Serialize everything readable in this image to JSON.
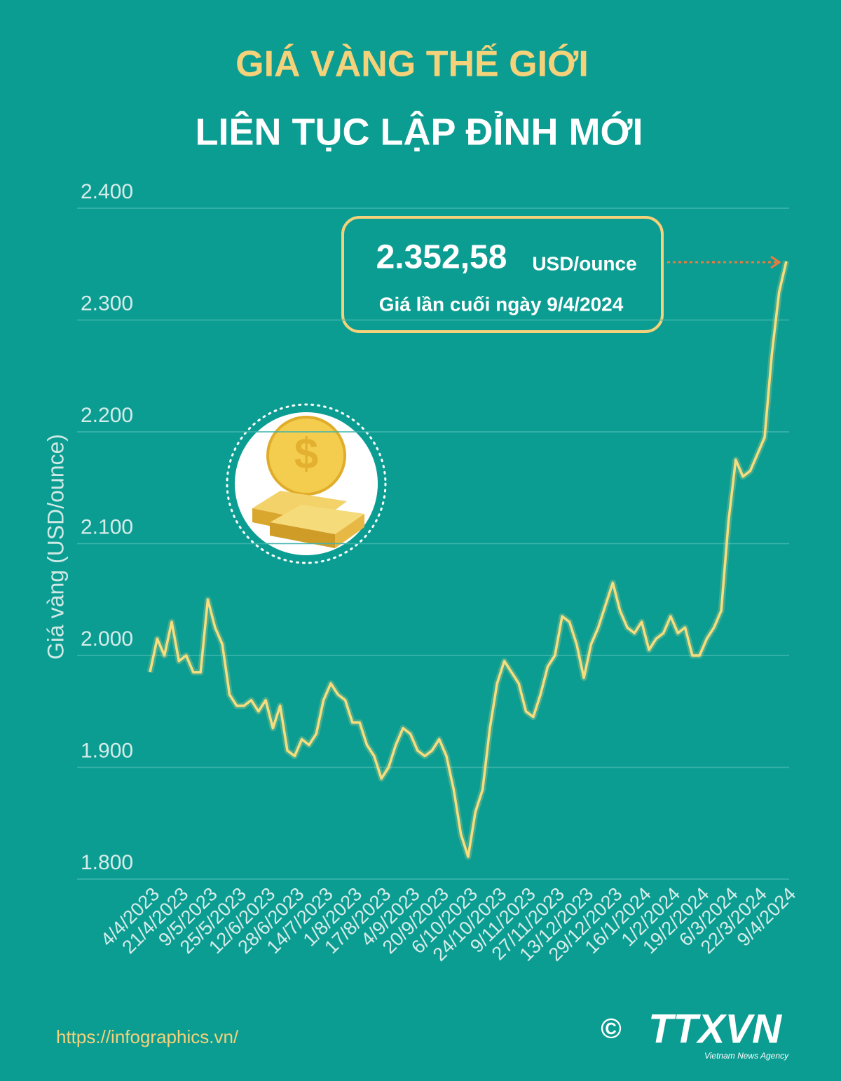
{
  "chart_data": {
    "type": "line",
    "title": "GIÁ VÀNG THẾ GIỚI",
    "subtitle": "LIÊN TỤC LẬP ĐỈNH MỚI",
    "y_label": "Giá vàng (USD/ounce)",
    "categories": [
      "4/4/2023",
      null,
      null,
      null,
      "21/4/2023",
      null,
      null,
      null,
      "9/5/2023",
      null,
      null,
      null,
      "25/5/2023",
      null,
      null,
      null,
      "12/6/2023",
      null,
      null,
      null,
      "28/6/2023",
      null,
      null,
      null,
      "14/7/2023",
      null,
      null,
      null,
      "1/8/2023",
      null,
      null,
      null,
      "17/8/2023",
      null,
      null,
      null,
      "4/9/2023",
      null,
      null,
      null,
      "20/9/2023",
      null,
      null,
      null,
      "6/10/2023",
      null,
      null,
      null,
      "24/10/2023",
      null,
      null,
      null,
      "9/11/2023",
      null,
      null,
      null,
      "27/11/2023",
      null,
      null,
      null,
      "13/12/2023",
      null,
      null,
      null,
      "29/12/2023",
      null,
      null,
      null,
      "16/1/2024",
      null,
      null,
      null,
      "1/2/2024",
      null,
      null,
      null,
      "19/2/2024",
      null,
      null,
      null,
      "6/3/2024",
      null,
      null,
      null,
      "22/3/2024",
      null,
      null,
      null,
      "9/4/2024"
    ],
    "values": [
      1985,
      2015,
      2000,
      2030,
      1995,
      2000,
      1985,
      1985,
      2050,
      2025,
      2010,
      1965,
      1955,
      1955,
      1960,
      1950,
      1960,
      1935,
      1955,
      1915,
      1910,
      1925,
      1920,
      1930,
      1960,
      1975,
      1965,
      1960,
      1940,
      1940,
      1920,
      1910,
      1890,
      1900,
      1920,
      1935,
      1930,
      1915,
      1910,
      1915,
      1925,
      1910,
      1880,
      1840,
      1820,
      1860,
      1880,
      1935,
      1975,
      1995,
      1985,
      1975,
      1950,
      1945,
      1965,
      1990,
      2000,
      2035,
      2030,
      2010,
      1980,
      2010,
      2025,
      2045,
      2065,
      2040,
      2025,
      2020,
      2030,
      2005,
      2015,
      2020,
      2035,
      2020,
      2025,
      2000,
      2000,
      2015,
      2025,
      2040,
      2120,
      2175,
      2160,
      2165,
      2180,
      2195,
      2270,
      2325,
      2352.58
    ],
    "color": "#f8dd7e",
    "ylim": [
      1800,
      2400
    ],
    "yticks": [
      {
        "value": 1800,
        "label": "1.800"
      },
      {
        "value": 1900,
        "label": "1.900"
      },
      {
        "value": 2000,
        "label": "2.000"
      },
      {
        "value": 2100,
        "label": "2.100"
      },
      {
        "value": 2200,
        "label": "2.200"
      },
      {
        "value": 2300,
        "label": "2.300"
      },
      {
        "value": 2400,
        "label": "2.400"
      }
    ],
    "grid": true,
    "annotation": {
      "value": "2.352,58",
      "unit": "USD/ounce",
      "note": "Giá lần cuối ngày 9/4/2024"
    }
  },
  "footer": {
    "url": "https://infographics.vn/",
    "copyright": "©",
    "logo": "TTXVN",
    "agency": "Vietnam News Agency"
  }
}
